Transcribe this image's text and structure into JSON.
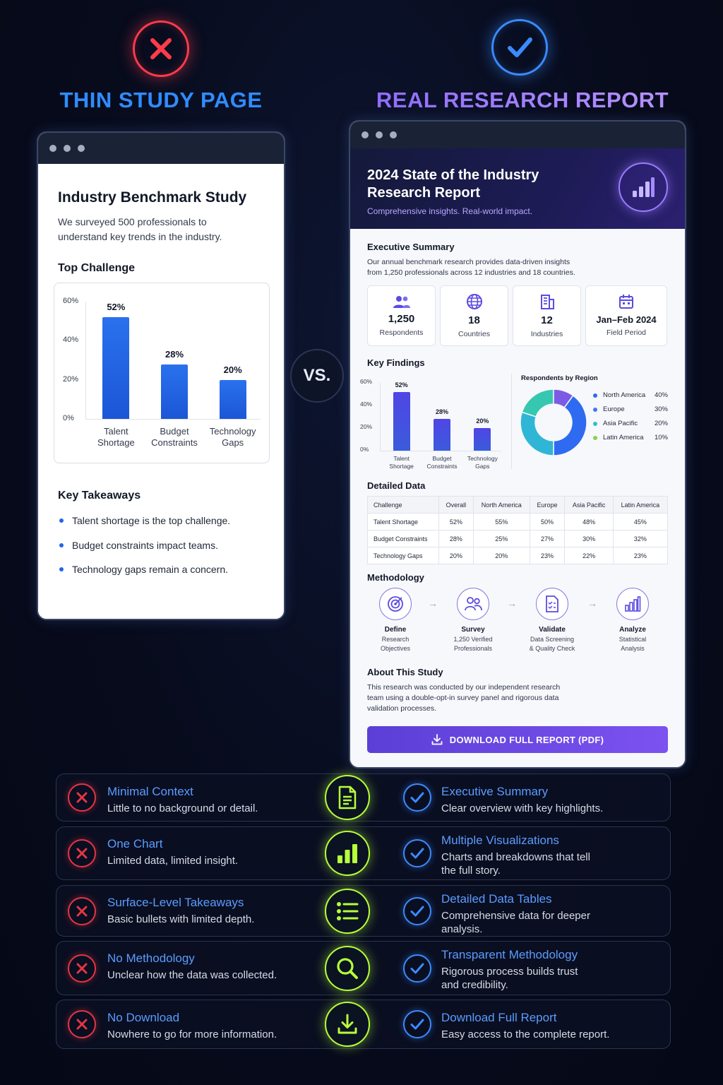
{
  "header": {
    "left_title": "THIN STUDY PAGE",
    "right_title": "REAL RESEARCH REPORT",
    "vs": "VS."
  },
  "thin": {
    "title": "Industry Benchmark Study",
    "desc_line1": "We surveyed 500 professionals to",
    "desc_line2": "understand key trends in the industry.",
    "chart_heading": "Top Challenge",
    "takeaways_heading": "Key Takeaways",
    "takeaways": [
      "Talent shortage is the top challenge.",
      "Budget constraints impact teams.",
      "Technology gaps remain a concern."
    ]
  },
  "report": {
    "title_line1": "2024 State of the Industry",
    "title_line2": "Research Report",
    "subtitle": "Comprehensive insights. Real-world impact.",
    "exec_heading": "Executive Summary",
    "exec_line1": "Our annual benchmark research provides data-driven insights",
    "exec_line2": "from 1,250 professionals across 12 industries and 18 countries.",
    "stats": [
      {
        "value": "1,250",
        "label": "Respondents",
        "icon": "people-icon"
      },
      {
        "value": "18",
        "label": "Countries",
        "icon": "globe-icon"
      },
      {
        "value": "12",
        "label": "Industries",
        "icon": "building-icon"
      },
      {
        "value": "Jan–Feb 2024",
        "label": "Field Period",
        "icon": "calendar-icon"
      }
    ],
    "findings_heading": "Key Findings",
    "region_heading": "Respondents by Region",
    "data_heading": "Detailed Data",
    "table": {
      "headers": [
        "Challenge",
        "Overall",
        "North America",
        "Europe",
        "Asia Pacific",
        "Latin America"
      ],
      "rows": [
        [
          "Talent Shortage",
          "52%",
          "55%",
          "50%",
          "48%",
          "45%"
        ],
        [
          "Budget Constraints",
          "28%",
          "25%",
          "27%",
          "30%",
          "32%"
        ],
        [
          "Technology Gaps",
          "20%",
          "20%",
          "23%",
          "22%",
          "23%"
        ]
      ]
    },
    "method_heading": "Methodology",
    "methods": [
      {
        "title": "Define",
        "sub1": "Research",
        "sub2": "Objectives"
      },
      {
        "title": "Survey",
        "sub1": "1,250 Verified",
        "sub2": "Professionals"
      },
      {
        "title": "Validate",
        "sub1": "Data Screening",
        "sub2": "& Quality Check"
      },
      {
        "title": "Analyze",
        "sub1": "Statistical",
        "sub2": "Analysis"
      }
    ],
    "about_heading": "About This Study",
    "about_line1": "This research was conducted by our independent research",
    "about_line2": "team using a double-opt-in survey panel and rigorous data",
    "about_line3": "validation processes.",
    "download_label": "DOWNLOAD FULL REPORT (PDF)"
  },
  "chart_data": [
    {
      "type": "bar",
      "categories": [
        "Talent Shortage",
        "Budget Constraints",
        "Technology Gaps"
      ],
      "values": [
        52,
        28,
        20
      ],
      "data_labels": [
        "52%",
        "28%",
        "20%"
      ],
      "y_ticks": [
        "0%",
        "20%",
        "40%",
        "60%"
      ],
      "ylim": [
        0,
        60
      ],
      "title": "Top Challenge",
      "color": "#1f66e5"
    },
    {
      "type": "bar",
      "categories": [
        "Talent Shortage",
        "Budget Constraints",
        "Technology Gaps"
      ],
      "values": [
        52,
        28,
        20
      ],
      "data_labels": [
        "52%",
        "28%",
        "20%"
      ],
      "y_ticks": [
        "0%",
        "20%",
        "40%",
        "60%"
      ],
      "ylim": [
        0,
        60
      ],
      "title": "Key Findings"
    },
    {
      "type": "pie",
      "title": "Respondents by Region",
      "categories": [
        "North America",
        "Europe",
        "Asia Pacific",
        "Latin America"
      ],
      "values": [
        40,
        30,
        20,
        10
      ],
      "labels": [
        "40%",
        "30%",
        "20%",
        "10%"
      ],
      "colors": [
        "#2f6bf0",
        "#2fb6d6",
        "#36c7b1",
        "#7b5be6"
      ],
      "legend": "right"
    }
  ],
  "comparison": [
    {
      "bad_title": "Minimal Context",
      "bad_sub": "Little to no background or detail.",
      "icon": "document-icon",
      "good_title": "Executive Summary",
      "good_sub1": "Clear overview with key highlights.",
      "good_sub2": ""
    },
    {
      "bad_title": "One Chart",
      "bad_sub": "Limited data, limited insight.",
      "icon": "bar-chart-icon",
      "good_title": "Multiple Visualizations",
      "good_sub1": "Charts and breakdowns that tell",
      "good_sub2": "the full story."
    },
    {
      "bad_title": "Surface-Level Takeaways",
      "bad_sub": "Basic bullets with limited depth.",
      "icon": "list-icon",
      "good_title": "Detailed Data Tables",
      "good_sub1": "Comprehensive data for deeper",
      "good_sub2": "analysis."
    },
    {
      "bad_title": "No Methodology",
      "bad_sub": "Unclear how the data was collected.",
      "icon": "magnifier-icon",
      "good_title": "Transparent Methodology",
      "good_sub1": "Rigorous process builds trust",
      "good_sub2": "and credibility."
    },
    {
      "bad_title": "No Download",
      "bad_sub": "Nowhere to go for more information.",
      "icon": "download-icon",
      "good_title": "Download Full Report",
      "good_sub1": "Easy access to the complete report.",
      "good_sub2": ""
    }
  ]
}
